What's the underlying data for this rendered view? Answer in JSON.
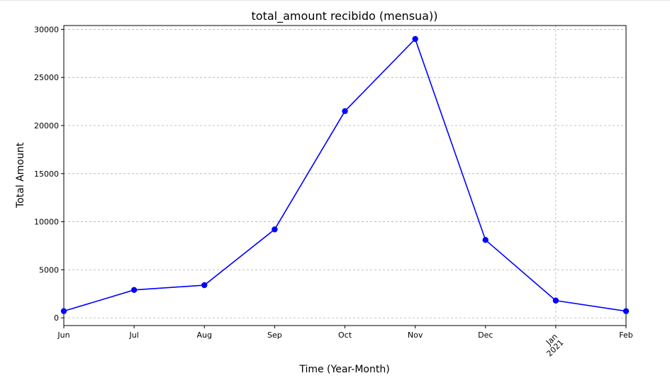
{
  "chart_data": {
    "type": "line",
    "title": "total_amount recibido (mensua))",
    "xlabel": "Time (Year-Month)",
    "ylabel": "Total Amount",
    "categories": [
      "Jun",
      "Jul",
      "Aug",
      "Sep",
      "Oct",
      "Nov",
      "Dec",
      "Jan",
      "Feb"
    ],
    "year_label": "2021",
    "series": [
      {
        "values": [
          700,
          2900,
          3400,
          9200,
          21500,
          29000,
          8100,
          1800,
          700
        ],
        "color": "#0000ff"
      }
    ],
    "yticks": [
      0,
      5000,
      10000,
      15000,
      20000,
      25000,
      30000
    ],
    "ylim": [
      -800,
      30400
    ],
    "grid": true,
    "legend": "none"
  }
}
